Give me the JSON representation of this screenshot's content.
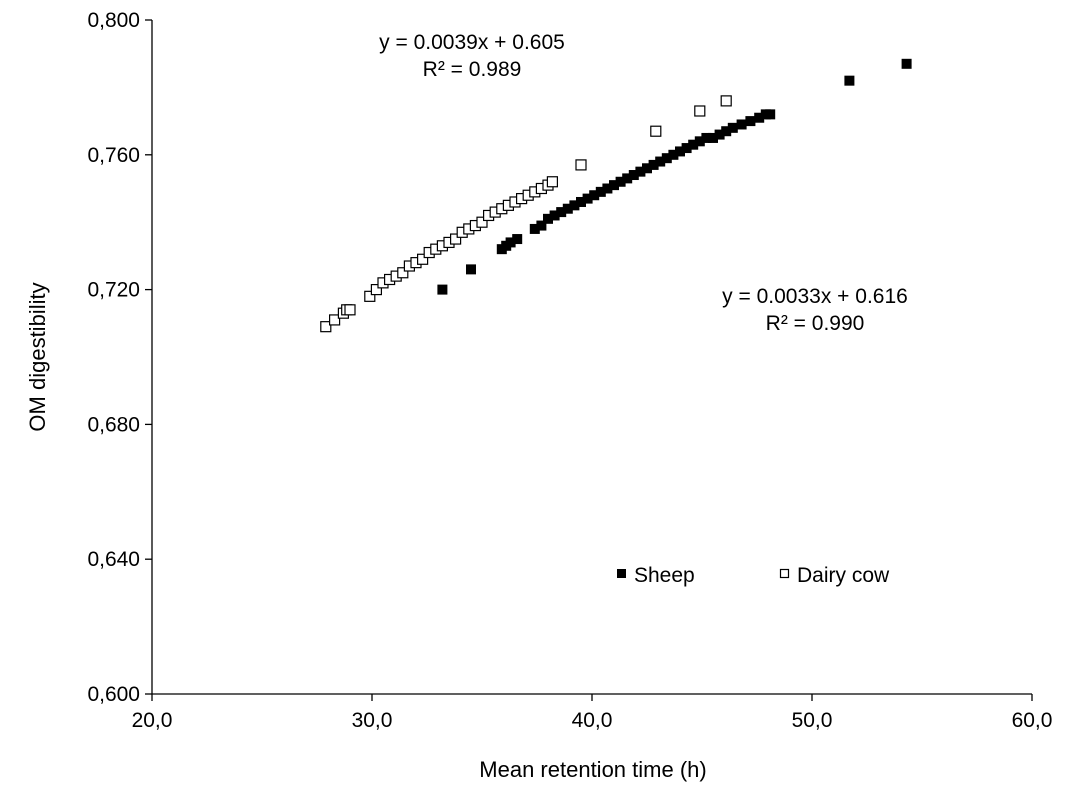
{
  "chart_data": {
    "type": "scatter",
    "xlabel": "Mean retention time (h)",
    "ylabel": "OM digestibility",
    "xlim": [
      20,
      60
    ],
    "ylim": [
      0.6,
      0.8
    ],
    "x_ticks": [
      20,
      30,
      40,
      50,
      60
    ],
    "x_tick_labels": [
      "20,0",
      "30,0",
      "40,0",
      "50,0",
      "60,0"
    ],
    "y_ticks": [
      0.6,
      0.64,
      0.68,
      0.72,
      0.76,
      0.8
    ],
    "y_tick_labels": [
      "0,600",
      "0,640",
      "0,680",
      "0,720",
      "0,760",
      "0,800"
    ],
    "grid": false,
    "legend_position": "bottom-right",
    "series": [
      {
        "name": "Sheep",
        "marker": "filled-square",
        "color": "#000000",
        "x": [
          33.2,
          34.5,
          35.9,
          36.1,
          36.3,
          36.6,
          37.4,
          37.7,
          38.0,
          38.3,
          38.6,
          38.9,
          39.2,
          39.5,
          39.8,
          40.1,
          40.4,
          40.7,
          41.0,
          41.3,
          41.6,
          41.9,
          42.2,
          42.5,
          42.8,
          43.1,
          43.4,
          43.7,
          44.0,
          44.3,
          44.6,
          44.9,
          45.2,
          45.5,
          45.8,
          46.1,
          46.4,
          46.8,
          47.2,
          47.6,
          47.9,
          48.1,
          51.7,
          54.3
        ],
        "y": [
          0.72,
          0.726,
          0.732,
          0.733,
          0.734,
          0.735,
          0.738,
          0.739,
          0.741,
          0.742,
          0.743,
          0.744,
          0.745,
          0.746,
          0.747,
          0.748,
          0.749,
          0.75,
          0.751,
          0.752,
          0.753,
          0.754,
          0.755,
          0.756,
          0.757,
          0.758,
          0.759,
          0.76,
          0.761,
          0.762,
          0.763,
          0.764,
          0.765,
          0.765,
          0.766,
          0.767,
          0.768,
          0.769,
          0.77,
          0.771,
          0.772,
          0.772,
          0.782,
          0.787
        ]
      },
      {
        "name": "Dairy cow",
        "marker": "open-square",
        "color": "#000000",
        "x": [
          27.9,
          28.3,
          28.7,
          28.85,
          29.0,
          29.9,
          30.2,
          30.5,
          30.8,
          31.1,
          31.4,
          31.7,
          32.0,
          32.3,
          32.6,
          32.9,
          33.2,
          33.5,
          33.8,
          34.1,
          34.4,
          34.7,
          35.0,
          35.3,
          35.6,
          35.9,
          36.2,
          36.5,
          36.8,
          37.1,
          37.4,
          37.7,
          38.0,
          38.2,
          39.5,
          42.9,
          44.9,
          46.1
        ],
        "y": [
          0.709,
          0.711,
          0.713,
          0.714,
          0.714,
          0.718,
          0.72,
          0.722,
          0.723,
          0.724,
          0.725,
          0.727,
          0.728,
          0.729,
          0.731,
          0.732,
          0.733,
          0.734,
          0.735,
          0.737,
          0.738,
          0.739,
          0.74,
          0.742,
          0.743,
          0.744,
          0.745,
          0.746,
          0.747,
          0.748,
          0.749,
          0.75,
          0.751,
          0.752,
          0.757,
          0.767,
          0.773,
          0.776
        ]
      }
    ],
    "annotations": [
      {
        "line1": "y = 0.0039x + 0.605",
        "line2": "R² = 0.989",
        "series": "Dairy cow"
      },
      {
        "line1": "y = 0.0033x + 0.616",
        "line2": "R² = 0.990",
        "series": "Sheep"
      }
    ]
  }
}
